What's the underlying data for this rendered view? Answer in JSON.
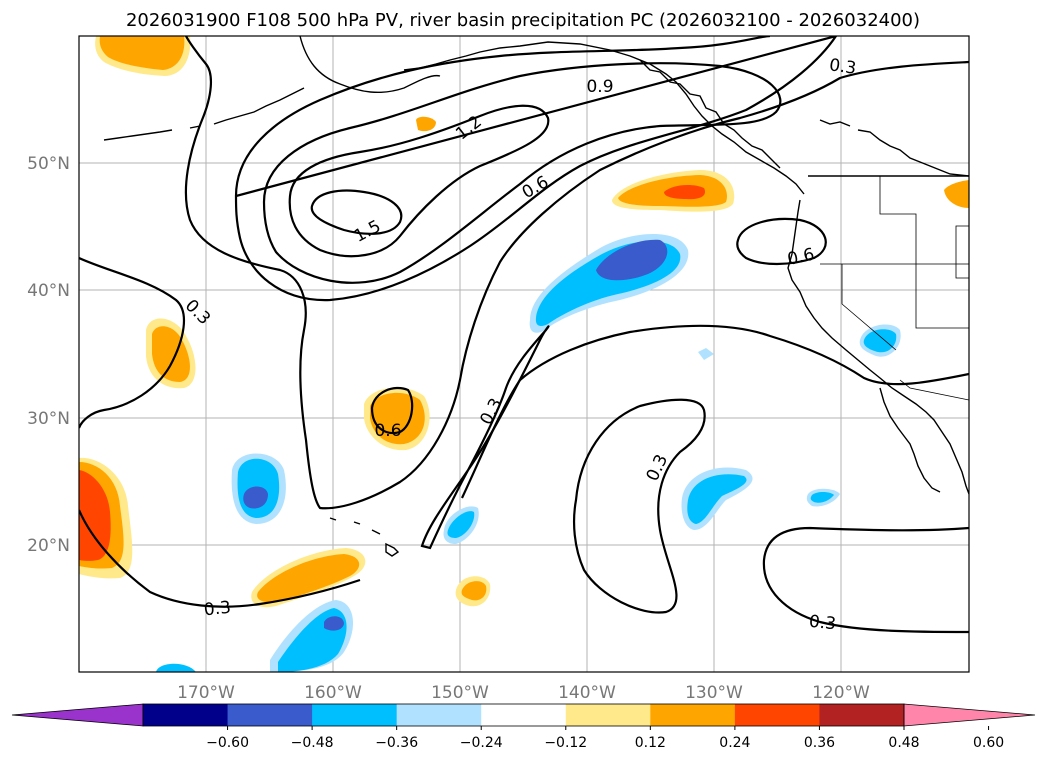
{
  "title": "2026031900 F108 500 hPa PV, river basin precipitation PC (2026032100 - 2026032400)",
  "axes": {
    "lon_ticks": [
      "170°W",
      "160°W",
      "150°W",
      "140°W",
      "130°W",
      "120°W"
    ],
    "lat_ticks": [
      "50°N",
      "40°N",
      "30°N",
      "20°N"
    ]
  },
  "pv_contour_labels": [
    "0.3",
    "0.3",
    "0.3",
    "0.3",
    "0.3",
    "0.3",
    "0.6",
    "0.6",
    "0.6",
    "0.9",
    "1.2",
    "1.5"
  ],
  "colorbar": {
    "ticks": [
      "−0.60",
      "−0.48",
      "−0.36",
      "−0.24",
      "−0.12",
      "0.12",
      "0.24",
      "0.36",
      "0.48",
      "0.60"
    ],
    "colors": [
      "#9933cc",
      "#00008b",
      "#3a5bcc",
      "#00bfff",
      "#b0e2ff",
      "#ffffff",
      "#ffe98a",
      "#ffa500",
      "#ff4500",
      "#b22222",
      "#ff85aa"
    ]
  },
  "precip_colors": {
    "neg_light": "#b0e2ff",
    "neg_mid": "#00bfff",
    "neg_dark": "#3a5bcc",
    "pos_light": "#ffe98a",
    "pos_mid": "#ffa500",
    "pos_dark": "#ff4500"
  }
}
